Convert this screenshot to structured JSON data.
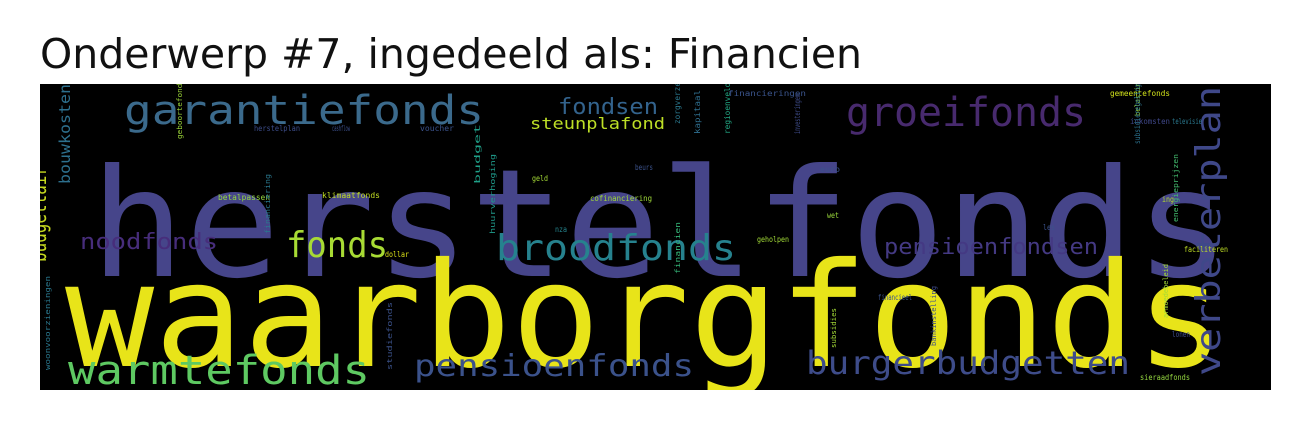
{
  "title": "Onderwerp #7, ingedeeld als: Financien",
  "chart_data": {
    "type": "wordcloud",
    "title": "Onderwerp #7, ingedeeld als: Financien",
    "background": "#000000",
    "colormap": "viridis",
    "words": [
      {
        "text": "herstelfonds",
        "weight": 1.0,
        "color": "#46458a"
      },
      {
        "text": "waarborgfonds",
        "weight": 0.95,
        "color": "#e8e419"
      },
      {
        "text": "garantiefonds",
        "weight": 0.28,
        "color": "#3b6a8c"
      },
      {
        "text": "groeifonds",
        "weight": 0.27,
        "color": "#482a6e"
      },
      {
        "text": "broodfonds",
        "weight": 0.25,
        "color": "#26828e"
      },
      {
        "text": "warmtefonds",
        "weight": 0.24,
        "color": "#5ec962"
      },
      {
        "text": "burgerbudgetten",
        "weight": 0.23,
        "color": "#3e4c8a"
      },
      {
        "text": "pensioenfonds",
        "weight": 0.22,
        "color": "#3b528b"
      },
      {
        "text": "verbeterplan",
        "weight": 0.21,
        "color": "#3f4889"
      },
      {
        "text": "fonds",
        "weight": 0.2,
        "color": "#a8db34"
      },
      {
        "text": "noodfonds",
        "weight": 0.15,
        "color": "#472d7b"
      },
      {
        "text": "pensioenfondsen",
        "weight": 0.13,
        "color": "#443983"
      },
      {
        "text": "fondsen",
        "weight": 0.12,
        "color": "#33638d"
      },
      {
        "text": "budgettair",
        "weight": 0.12,
        "color": "#c5d81f"
      },
      {
        "text": "steunplafond",
        "weight": 0.1,
        "color": "#bddf26"
      },
      {
        "text": "bouwkosten",
        "weight": 0.07,
        "color": "#2d708e"
      },
      {
        "text": "financieringen",
        "weight": 0.03,
        "color": "#3a548c"
      },
      {
        "text": "gemeentefonds",
        "weight": 0.03,
        "color": "#d2e21b"
      },
      {
        "text": "herstelplan",
        "weight": 0.03,
        "color": "#3d4d8a"
      },
      {
        "text": "cashflow",
        "weight": 0.03,
        "color": "#3c4f8a"
      },
      {
        "text": "voucher",
        "weight": 0.03,
        "color": "#3b528b"
      },
      {
        "text": "belasting",
        "weight": 0.03,
        "color": "#9dd93b"
      },
      {
        "text": "inkomsten",
        "weight": 0.03,
        "color": "#3f4788"
      },
      {
        "text": "televisie",
        "weight": 0.03,
        "color": "#2a788e"
      },
      {
        "text": "klimaatfonds",
        "weight": 0.03,
        "color": "#c2df23"
      },
      {
        "text": "betalpassen",
        "weight": 0.03,
        "color": "#95d840"
      },
      {
        "text": "geld",
        "weight": 0.03,
        "color": "#a5db36"
      },
      {
        "text": "cofinanciering",
        "weight": 0.03,
        "color": "#a0da39"
      },
      {
        "text": "geboortefonds",
        "weight": 0.03,
        "color": "#9fda3a"
      },
      {
        "text": "beurs",
        "weight": 0.03,
        "color": "#3b528b"
      },
      {
        "text": "budget",
        "weight": 0.03,
        "color": "#1fa088"
      },
      {
        "text": "kapitaal",
        "weight": 0.03,
        "color": "#2e6e8e"
      },
      {
        "text": "regioenveloppen",
        "weight": 0.03,
        "color": "#22a884"
      },
      {
        "text": "zorgverzekering",
        "weight": 0.03,
        "color": "#2a788e"
      },
      {
        "text": "investeringen",
        "weight": 0.03,
        "color": "#3e4c8a"
      },
      {
        "text": "wet",
        "weight": 0.03,
        "color": "#9bd93c"
      },
      {
        "text": "ing",
        "weight": 0.03,
        "color": "#b5de2b"
      },
      {
        "text": "euro",
        "weight": 0.03,
        "color": "#3b528b"
      },
      {
        "text": "nza",
        "weight": 0.03,
        "color": "#25858e"
      },
      {
        "text": "subsidieregeling",
        "weight": 0.03,
        "color": "#2c728e"
      },
      {
        "text": "dollar",
        "weight": 0.03,
        "color": "#dde318"
      },
      {
        "text": "geholpen",
        "weight": 0.03,
        "color": "#a2da37"
      },
      {
        "text": "les",
        "weight": 0.03,
        "color": "#3b528b"
      },
      {
        "text": "faciliteren",
        "weight": 0.03,
        "color": "#c0df25"
      },
      {
        "text": "financiering",
        "weight": 0.03,
        "color": "#2a788e"
      },
      {
        "text": "huurverhoging",
        "weight": 0.03,
        "color": "#1f9a8a"
      },
      {
        "text": "financien",
        "weight": 0.03,
        "color": "#35b779"
      },
      {
        "text": "energieprijzen",
        "weight": 0.03,
        "color": "#44bf70"
      },
      {
        "text": "financieel",
        "weight": 0.03,
        "color": "#3b528b"
      },
      {
        "text": "armoedebeleid",
        "weight": 0.03,
        "color": "#a5db36"
      },
      {
        "text": "lonen",
        "weight": 0.03,
        "color": "#3e4c8a"
      },
      {
        "text": "sieraadfonds",
        "weight": 0.03,
        "color": "#95d840"
      },
      {
        "text": "studiefonds",
        "weight": 0.03,
        "color": "#3b528b"
      },
      {
        "text": "woonvoorzieningen",
        "weight": 0.03,
        "color": "#2a788e"
      },
      {
        "text": "subsidies",
        "weight": 0.03,
        "color": "#a5db36"
      },
      {
        "text": "bankinstelling",
        "weight": 0.03,
        "color": "#3e4c8a"
      }
    ]
  }
}
